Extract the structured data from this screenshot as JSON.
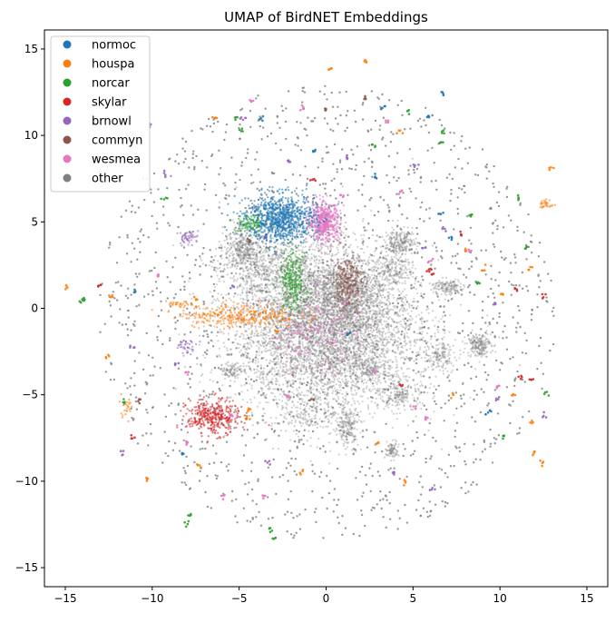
{
  "chart_data": {
    "type": "scatter",
    "title": "UMAP of BirdNET Embeddings",
    "xlabel": "",
    "ylabel": "",
    "xlim": [
      -16.2,
      16.2
    ],
    "ylim": [
      -16.1,
      16.1
    ],
    "xticks": [
      -15,
      -10,
      -5,
      0,
      5,
      10,
      15
    ],
    "yticks": [
      -15,
      -10,
      -5,
      0,
      5,
      10,
      15
    ],
    "grid": false,
    "legend": "top-left",
    "series": [
      {
        "name": "normoc",
        "color": "#1f77b4",
        "clusters": [
          {
            "x": -2.6,
            "y": 5.2,
            "sx": 1.0,
            "sy": 0.7,
            "n": 900
          }
        ],
        "points": [
          [
            2.8,
            7.6
          ],
          [
            6.7,
            12.4
          ],
          [
            5.9,
            11.1
          ],
          [
            6.6,
            5.5
          ],
          [
            -0.7,
            9.1
          ],
          [
            -3.6,
            10.9
          ],
          [
            7.2,
            4.1
          ],
          [
            -8.3,
            -8.4
          ],
          [
            3.3,
            11.6
          ],
          [
            -11.0,
            1.0
          ],
          [
            9.3,
            -6.0
          ],
          [
            1.3,
            -1.5
          ]
        ]
      },
      {
        "name": "houspa",
        "color": "#ff7f0e",
        "clusters": [
          {
            "x": -5.0,
            "y": -0.4,
            "sx": 1.7,
            "sy": 0.35,
            "n": 320
          },
          {
            "x": 12.7,
            "y": 6.0,
            "sx": 0.2,
            "sy": 0.15,
            "n": 30
          },
          {
            "x": -11.5,
            "y": -5.6,
            "sx": 0.2,
            "sy": 0.3,
            "n": 25
          },
          {
            "x": -8.4,
            "y": 0.2,
            "sx": 0.4,
            "sy": 0.1,
            "n": 30
          }
        ],
        "points": [
          [
            2.3,
            14.3
          ],
          [
            0.2,
            13.8
          ],
          [
            -6.4,
            11.0
          ],
          [
            4.3,
            10.2
          ],
          [
            12.9,
            8.1
          ],
          [
            -12.3,
            0.7
          ],
          [
            -15.0,
            1.2
          ],
          [
            -7.5,
            0.5
          ],
          [
            -2.8,
            -1.3
          ],
          [
            -4.5,
            -5.9
          ],
          [
            -4.5,
            -6.3
          ],
          [
            7.3,
            -5.0
          ],
          [
            10.8,
            -5.0
          ],
          [
            11.8,
            -6.6
          ],
          [
            12.0,
            -8.3
          ],
          [
            12.4,
            -8.9
          ],
          [
            -1.4,
            -9.4
          ],
          [
            -12.5,
            -2.8
          ],
          [
            9.1,
            2.3
          ],
          [
            10.2,
            0.8
          ],
          [
            11.8,
            2.3
          ],
          [
            -7.3,
            -9.1
          ],
          [
            3.0,
            -7.8
          ],
          [
            4.5,
            -10.1
          ],
          [
            -10.3,
            -10.0
          ],
          [
            8.0,
            3.4
          ]
        ]
      },
      {
        "name": "norcar",
        "color": "#2ca02c",
        "clusters": [
          {
            "x": -1.9,
            "y": 1.5,
            "sx": 0.4,
            "sy": 0.9,
            "n": 260
          },
          {
            "x": -4.3,
            "y": 4.9,
            "sx": 0.5,
            "sy": 0.3,
            "n": 110
          }
        ],
        "points": [
          [
            -4.9,
            10.3
          ],
          [
            2.8,
            9.4
          ],
          [
            4.7,
            11.3
          ],
          [
            6.6,
            9.6
          ],
          [
            -9.3,
            6.3
          ],
          [
            -13.9,
            0.5
          ],
          [
            -14.1,
            0.4
          ],
          [
            8.3,
            5.4
          ],
          [
            11.1,
            6.4
          ],
          [
            11.5,
            3.5
          ],
          [
            12.6,
            -4.8
          ],
          [
            10.2,
            -7.4
          ],
          [
            -7.8,
            -12.0
          ],
          [
            -3.2,
            -12.8
          ],
          [
            -3.0,
            -13.3
          ],
          [
            -8.0,
            -12.5
          ],
          [
            6.7,
            10.2
          ],
          [
            8.7,
            1.4
          ],
          [
            -11.7,
            -5.4
          ],
          [
            -5.2,
            11.0
          ]
        ]
      },
      {
        "name": "skylar",
        "color": "#d62728",
        "clusters": [
          {
            "x": -6.5,
            "y": -6.3,
            "sx": 0.75,
            "sy": 0.5,
            "n": 380
          }
        ],
        "points": [
          [
            7.8,
            4.3
          ],
          [
            10.9,
            1.1
          ],
          [
            -0.8,
            7.5
          ],
          [
            6.0,
            2.2
          ],
          [
            6.1,
            2.1
          ],
          [
            11.8,
            -4.1
          ],
          [
            11.2,
            -4.0
          ],
          [
            -13.0,
            1.3
          ],
          [
            -11.2,
            -7.5
          ],
          [
            4.3,
            -4.4
          ],
          [
            12.5,
            0.7
          ]
        ]
      },
      {
        "name": "brnowl",
        "color": "#9467bd",
        "clusters": [
          {
            "x": -7.9,
            "y": 4.1,
            "sx": 0.3,
            "sy": 0.2,
            "n": 50
          },
          {
            "x": -8.0,
            "y": -2.2,
            "sx": 0.3,
            "sy": 0.2,
            "n": 35
          }
        ],
        "points": [
          [
            -10.1,
            10.6
          ],
          [
            -4.8,
            11.0
          ],
          [
            -9.3,
            7.8
          ],
          [
            -2.1,
            8.5
          ],
          [
            1.2,
            8.7
          ],
          [
            5.2,
            8.3
          ],
          [
            -3.5,
            4.2
          ],
          [
            -3.4,
            -8.9
          ],
          [
            3.9,
            -9.5
          ],
          [
            6.8,
            4.6
          ],
          [
            9.9,
            -5.2
          ],
          [
            -11.2,
            -2.2
          ],
          [
            -11.7,
            -8.4
          ],
          [
            -5.4,
            1.3
          ],
          [
            9.7,
            0.3
          ],
          [
            12.6,
            -6.2
          ],
          [
            5.6,
            3.5
          ],
          [
            6.1,
            -10.5
          ],
          [
            -8.6,
            -3.2
          ]
        ]
      },
      {
        "name": "commyn",
        "color": "#8c564b",
        "clusters": [
          {
            "x": 1.2,
            "y": 1.5,
            "sx": 0.45,
            "sy": 0.8,
            "n": 240
          }
        ],
        "points": [
          [
            2.2,
            12.1
          ],
          [
            -0.1,
            11.4
          ],
          [
            -10.8,
            -5.3
          ],
          [
            -0.8,
            -5.3
          ],
          [
            -4.4,
            3.8
          ]
        ]
      },
      {
        "name": "wesmea",
        "color": "#e377c2",
        "clusters": [
          {
            "x": -0.1,
            "y": 5.0,
            "sx": 0.45,
            "sy": 0.55,
            "n": 520
          },
          {
            "x": -0.6,
            "y": -1.4,
            "sx": 1.5,
            "sy": 1.2,
            "n": 220
          }
        ],
        "points": [
          [
            4.2,
            6.8
          ],
          [
            -1.3,
            11.6
          ],
          [
            -4.3,
            12.0
          ],
          [
            3.5,
            10.8
          ],
          [
            0.9,
            6.5
          ],
          [
            -9.7,
            1.9
          ],
          [
            -8.0,
            -7.8
          ],
          [
            -6.0,
            -10.9
          ],
          [
            -5.4,
            -6.2
          ],
          [
            -3.5,
            -10.9
          ],
          [
            5.1,
            -5.8
          ],
          [
            5.8,
            -6.4
          ],
          [
            9.9,
            -4.6
          ],
          [
            6.0,
            2.8
          ],
          [
            2.7,
            -3.7
          ],
          [
            -2.3,
            -5.1
          ],
          [
            8.2,
            3.3
          ],
          [
            -8.0,
            -3.7
          ]
        ]
      },
      {
        "name": "other",
        "color": "#7f7f7f",
        "clusters": [
          {
            "x": 0.0,
            "y": -1.2,
            "sx": 2.6,
            "sy": 2.3,
            "n": 5200
          },
          {
            "x": 1.2,
            "y": 1.0,
            "sx": 1.0,
            "sy": 0.9,
            "n": 700
          },
          {
            "x": -4.7,
            "y": 3.4,
            "sx": 0.6,
            "sy": 0.6,
            "n": 350
          },
          {
            "x": -3.0,
            "y": 2.0,
            "sx": 1.4,
            "sy": 1.0,
            "n": 550
          },
          {
            "x": 4.3,
            "y": 3.8,
            "sx": 0.45,
            "sy": 0.35,
            "n": 220
          },
          {
            "x": 8.8,
            "y": -2.1,
            "sx": 0.35,
            "sy": 0.35,
            "n": 200
          },
          {
            "x": 7.0,
            "y": 1.2,
            "sx": 0.45,
            "sy": 0.25,
            "n": 140
          },
          {
            "x": 4.3,
            "y": -5.0,
            "sx": 0.6,
            "sy": 0.45,
            "n": 180
          },
          {
            "x": 1.2,
            "y": -6.8,
            "sx": 0.35,
            "sy": 0.6,
            "n": 180
          },
          {
            "x": 6.5,
            "y": -2.8,
            "sx": 0.45,
            "sy": 0.4,
            "n": 140
          },
          {
            "x": 3.9,
            "y": 2.3,
            "sx": 0.5,
            "sy": 0.4,
            "n": 150
          },
          {
            "x": -1.0,
            "y": -6.0,
            "sx": 0.8,
            "sy": 0.5,
            "n": 140
          },
          {
            "x": -5.4,
            "y": -3.6,
            "sx": 0.4,
            "sy": 0.2,
            "n": 90
          },
          {
            "x": 3.8,
            "y": -8.2,
            "sx": 0.2,
            "sy": 0.25,
            "n": 80
          },
          {
            "x": 2.4,
            "y": -3.5,
            "sx": 0.4,
            "sy": 0.3,
            "n": 120
          }
        ],
        "scatter": {
          "n": 1700,
          "radius": 13.2
        }
      }
    ]
  }
}
